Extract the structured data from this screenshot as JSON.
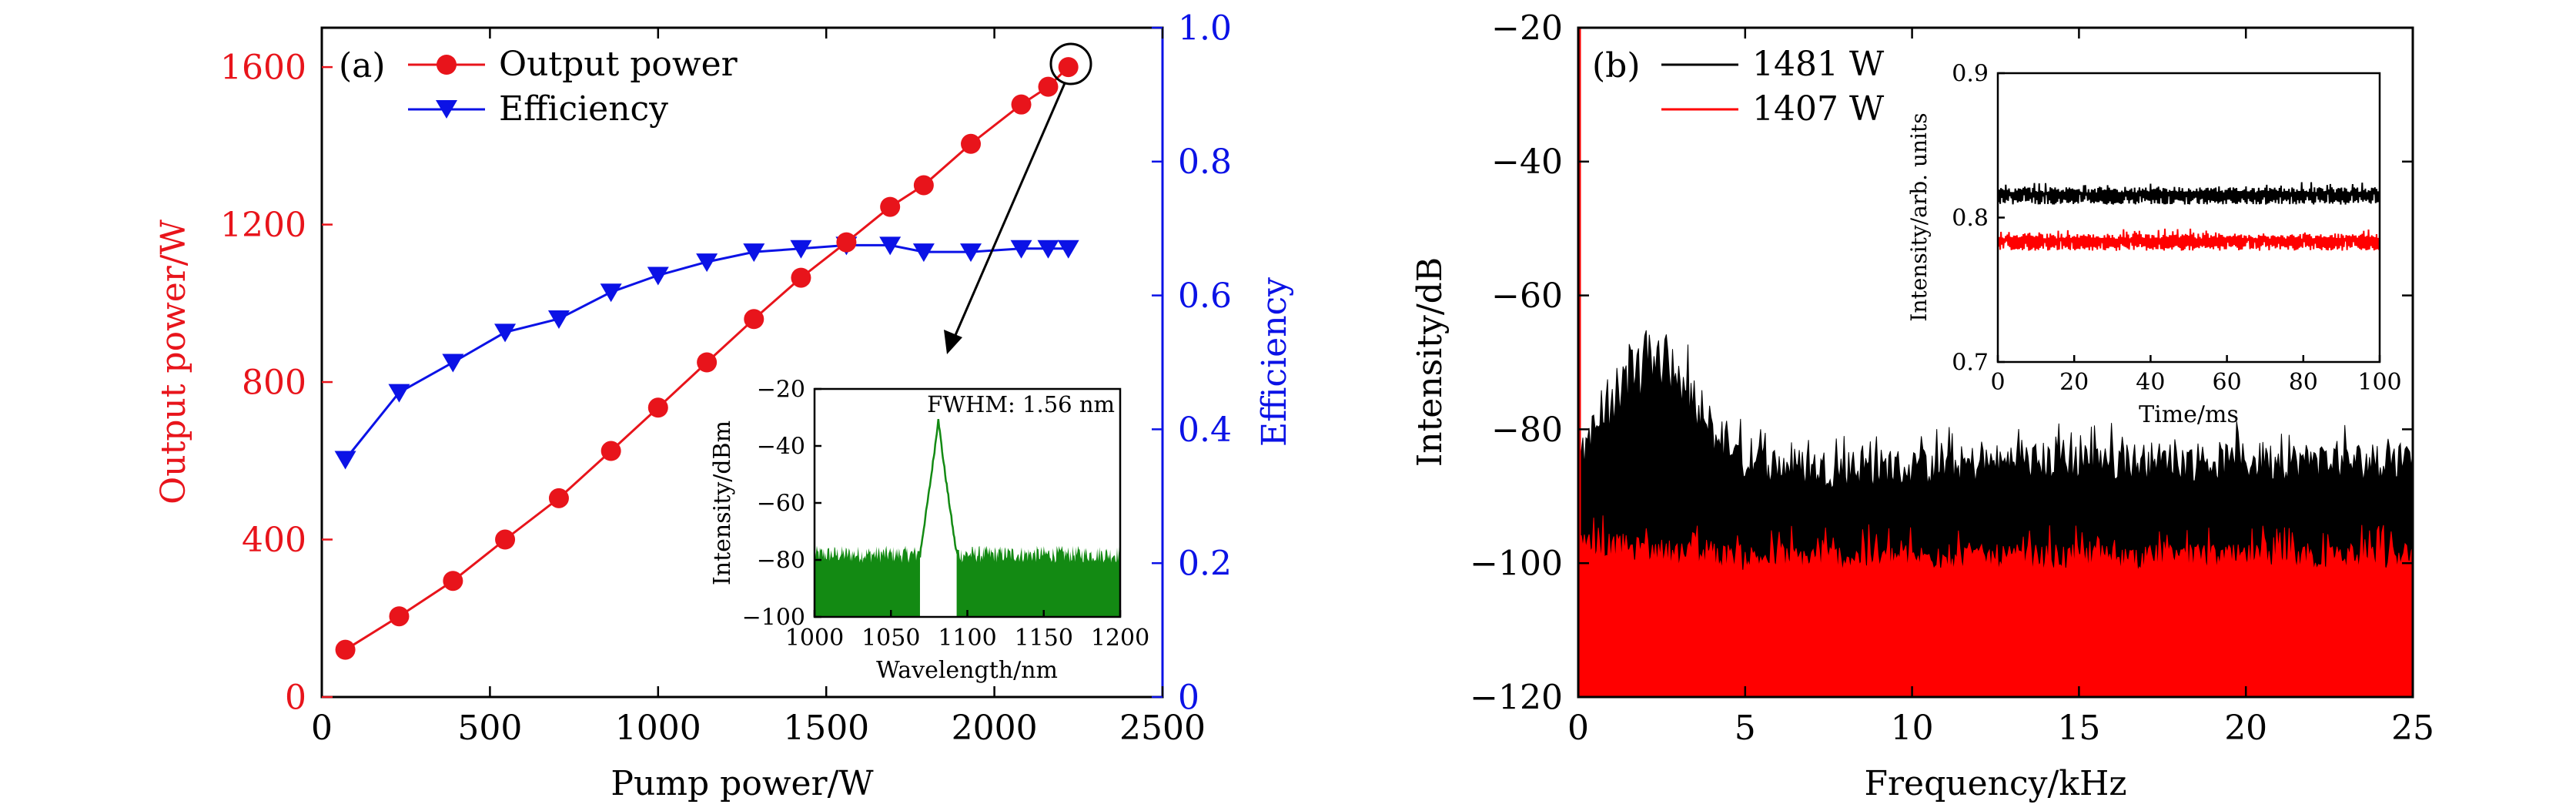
{
  "colors": {
    "output": "#e8141b",
    "efficiency": "#0b12e6",
    "spectrum": "#138a13",
    "black": "#000000",
    "red": "#ff0000"
  },
  "panel_a": {
    "tag": "(a)",
    "legend": [
      "Output power",
      "Efficiency"
    ],
    "xlabel": "Pump power/W",
    "ylabel_left": "Output power/W",
    "ylabel_right": "Efficiency",
    "inset": {
      "annotation": "FWHM: 1.56 nm",
      "xlabel": "Wavelength/nm",
      "ylabel": "Intensity/dBm"
    }
  },
  "panel_b": {
    "tag": "(b)",
    "legend": [
      "1481 W",
      "1407 W"
    ],
    "xlabel": "Frequency/kHz",
    "ylabel": "Intensity/dB",
    "inset": {
      "xlabel": "Time/ms",
      "ylabel": "Intensity/arb. units"
    }
  },
  "chart_data": [
    {
      "id": "a-main",
      "type": "line",
      "xlim": [
        0,
        2500
      ],
      "ylim": [
        0,
        1700
      ],
      "y2lim": [
        0,
        1.0
      ],
      "xticks": [
        0,
        500,
        1000,
        1500,
        2000,
        2500
      ],
      "yticks": [
        0,
        400,
        800,
        1200,
        1600
      ],
      "y2ticks": [
        0,
        0.2,
        0.4,
        0.6,
        0.8,
        1.0
      ],
      "y2ticklabels": [
        "0",
        "0.2",
        "0.4",
        "0.6",
        "0.8",
        "1.0"
      ],
      "legend_position": "top-left",
      "series": [
        {
          "name": "Output power",
          "axis": "left",
          "marker": "circle",
          "x": [
            70,
            230,
            390,
            545,
            705,
            860,
            1000,
            1145,
            1285,
            1425,
            1560,
            1690,
            1790,
            1930,
            2080,
            2160,
            2220
          ],
          "y": [
            120,
            205,
            295,
            400,
            505,
            625,
            735,
            850,
            960,
            1065,
            1155,
            1245,
            1300,
            1405,
            1505,
            1550,
            1600
          ]
        },
        {
          "name": "Efficiency",
          "axis": "right",
          "marker": "triangle-down",
          "x": [
            70,
            230,
            390,
            545,
            705,
            860,
            1000,
            1145,
            1285,
            1425,
            1560,
            1690,
            1790,
            1930,
            2080,
            2160,
            2220
          ],
          "y": [
            0.355,
            0.455,
            0.5,
            0.545,
            0.565,
            0.605,
            0.63,
            0.65,
            0.665,
            0.67,
            0.675,
            0.675,
            0.665,
            0.665,
            0.67,
            0.67,
            0.67
          ]
        }
      ]
    },
    {
      "id": "a-inset",
      "type": "area",
      "xlim": [
        1000,
        1200
      ],
      "ylim": [
        -100,
        -20
      ],
      "xticks": [
        1000,
        1050,
        1100,
        1150,
        1200
      ],
      "yticks": [
        -100,
        -80,
        -60,
        -40,
        -20
      ],
      "peak_wavelength": 1081,
      "peak_intensity": -30,
      "noise_floor": -78
    },
    {
      "id": "b-main",
      "type": "area",
      "xlim": [
        0,
        25
      ],
      "ylim": [
        -120,
        -20
      ],
      "xticks": [
        0,
        5,
        10,
        15,
        20,
        25
      ],
      "yticks": [
        -120,
        -100,
        -80,
        -60,
        -40,
        -20
      ],
      "legend_position": "top-left",
      "series": [
        {
          "name": "1481 W",
          "x": [
            0,
            0.3,
            1,
            1.5,
            2,
            2.5,
            3,
            3.3,
            4,
            5,
            7,
            10,
            13.5,
            20,
            25
          ],
          "y": [
            -88,
            -82,
            -79,
            -75,
            -72,
            -74,
            -75,
            -79,
            -82,
            -86,
            -87,
            -87,
            -86,
            -86,
            -86
          ]
        },
        {
          "name": "1407 W",
          "x": [
            0,
            0.5,
            2,
            5,
            10,
            15,
            20,
            25
          ],
          "y": [
            -98,
            -98,
            -99,
            -100,
            -100,
            -100,
            -100,
            -100
          ]
        }
      ]
    },
    {
      "id": "b-inset",
      "type": "line",
      "xlim": [
        0,
        100
      ],
      "ylim": [
        0.7,
        0.9
      ],
      "xticks": [
        0,
        20,
        40,
        60,
        80,
        100
      ],
      "yticks": [
        0.7,
        0.8,
        0.9
      ],
      "series": [
        {
          "name": "1481 W",
          "mean": 0.815,
          "spread": 0.006
        },
        {
          "name": "1407 W",
          "mean": 0.783,
          "spread": 0.006
        }
      ]
    }
  ]
}
